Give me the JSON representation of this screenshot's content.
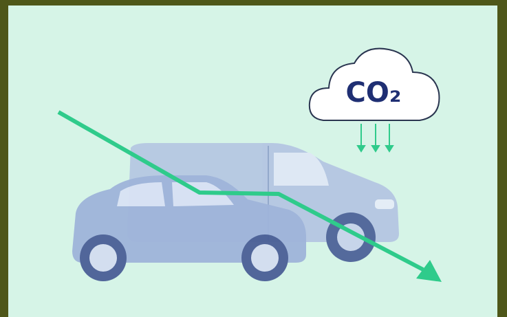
{
  "cloud": {
    "label": "CO₂"
  }
}
